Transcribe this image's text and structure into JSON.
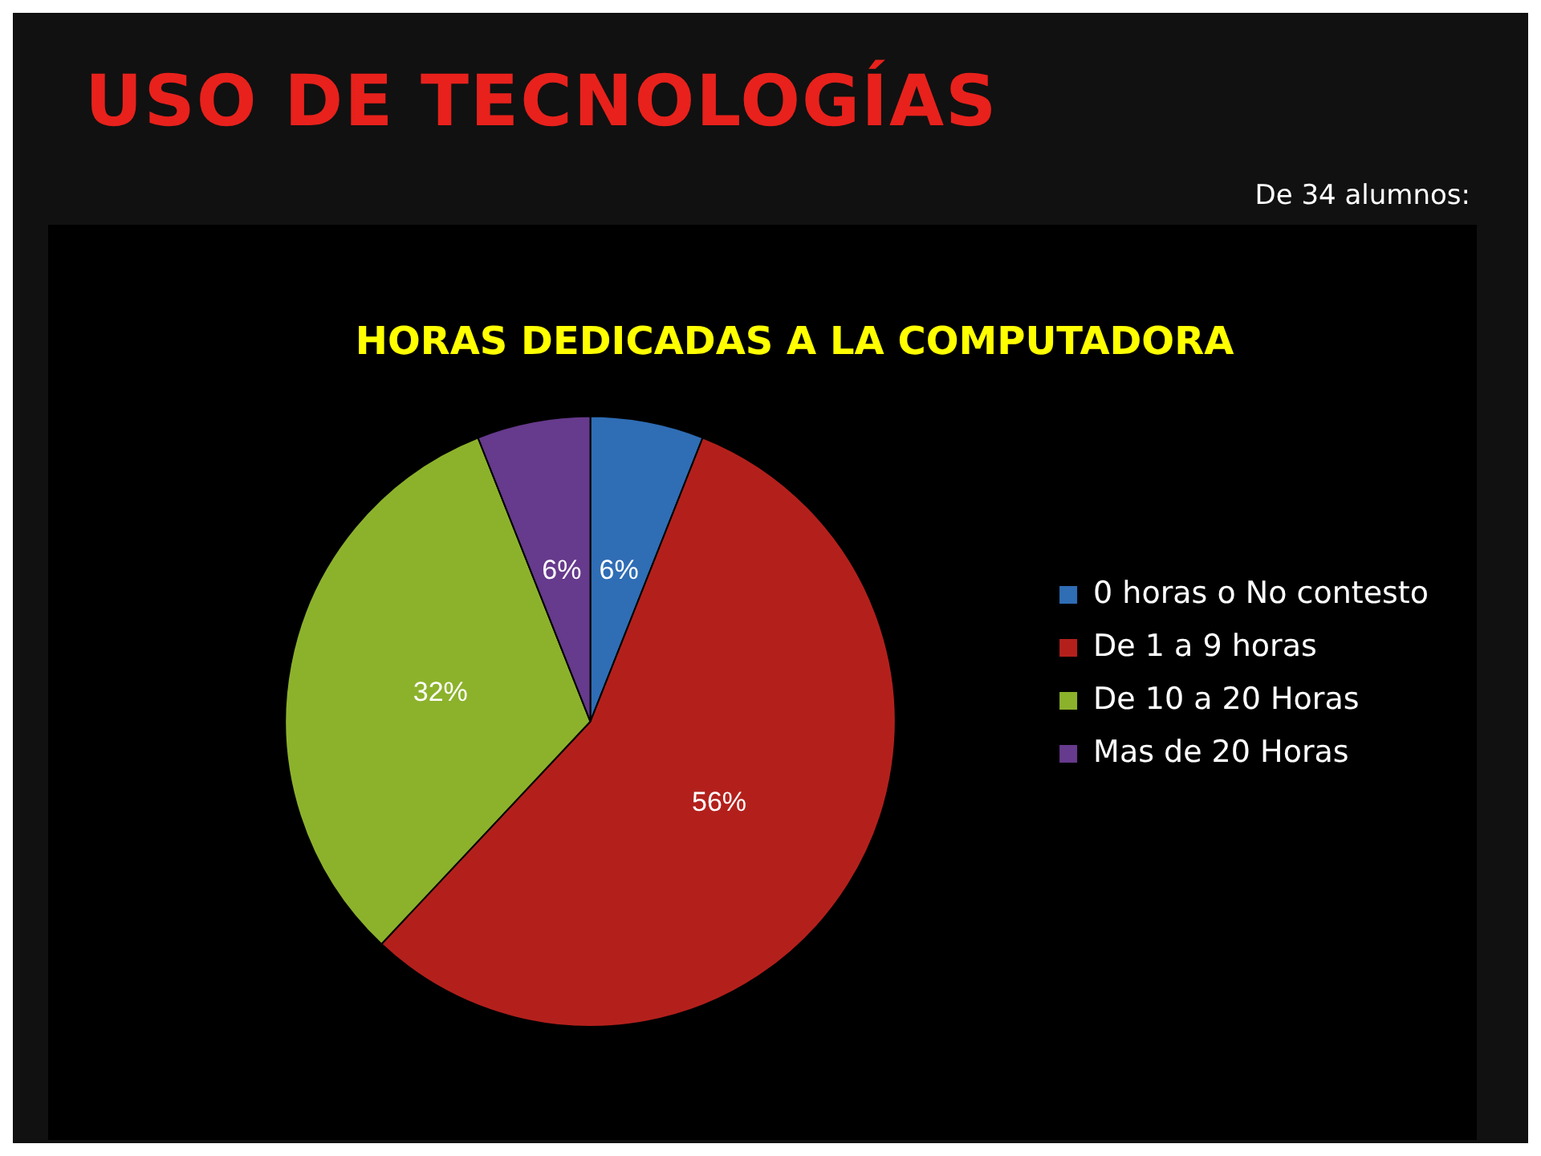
{
  "chart_data": {
    "type": "pie",
    "title": "USO DE TECNOLOGÍAS",
    "subtitle": "HORAS DEDICADAS A LA COMPUTADORA",
    "annotations": [
      "De 34 alumnos:"
    ],
    "categories": [
      "0 horas o No contesto",
      "De 1 a 9 horas",
      "De 10 a 20 Horas",
      "Mas de 20 Horas"
    ],
    "values": [
      6,
      56,
      32,
      6
    ],
    "colors": [
      "#2f6db5",
      "#b3201c",
      "#8cb22c",
      "#663a8c"
    ],
    "value_labels": [
      "6%",
      "56%",
      "32%",
      "6%"
    ],
    "legend": "right"
  }
}
